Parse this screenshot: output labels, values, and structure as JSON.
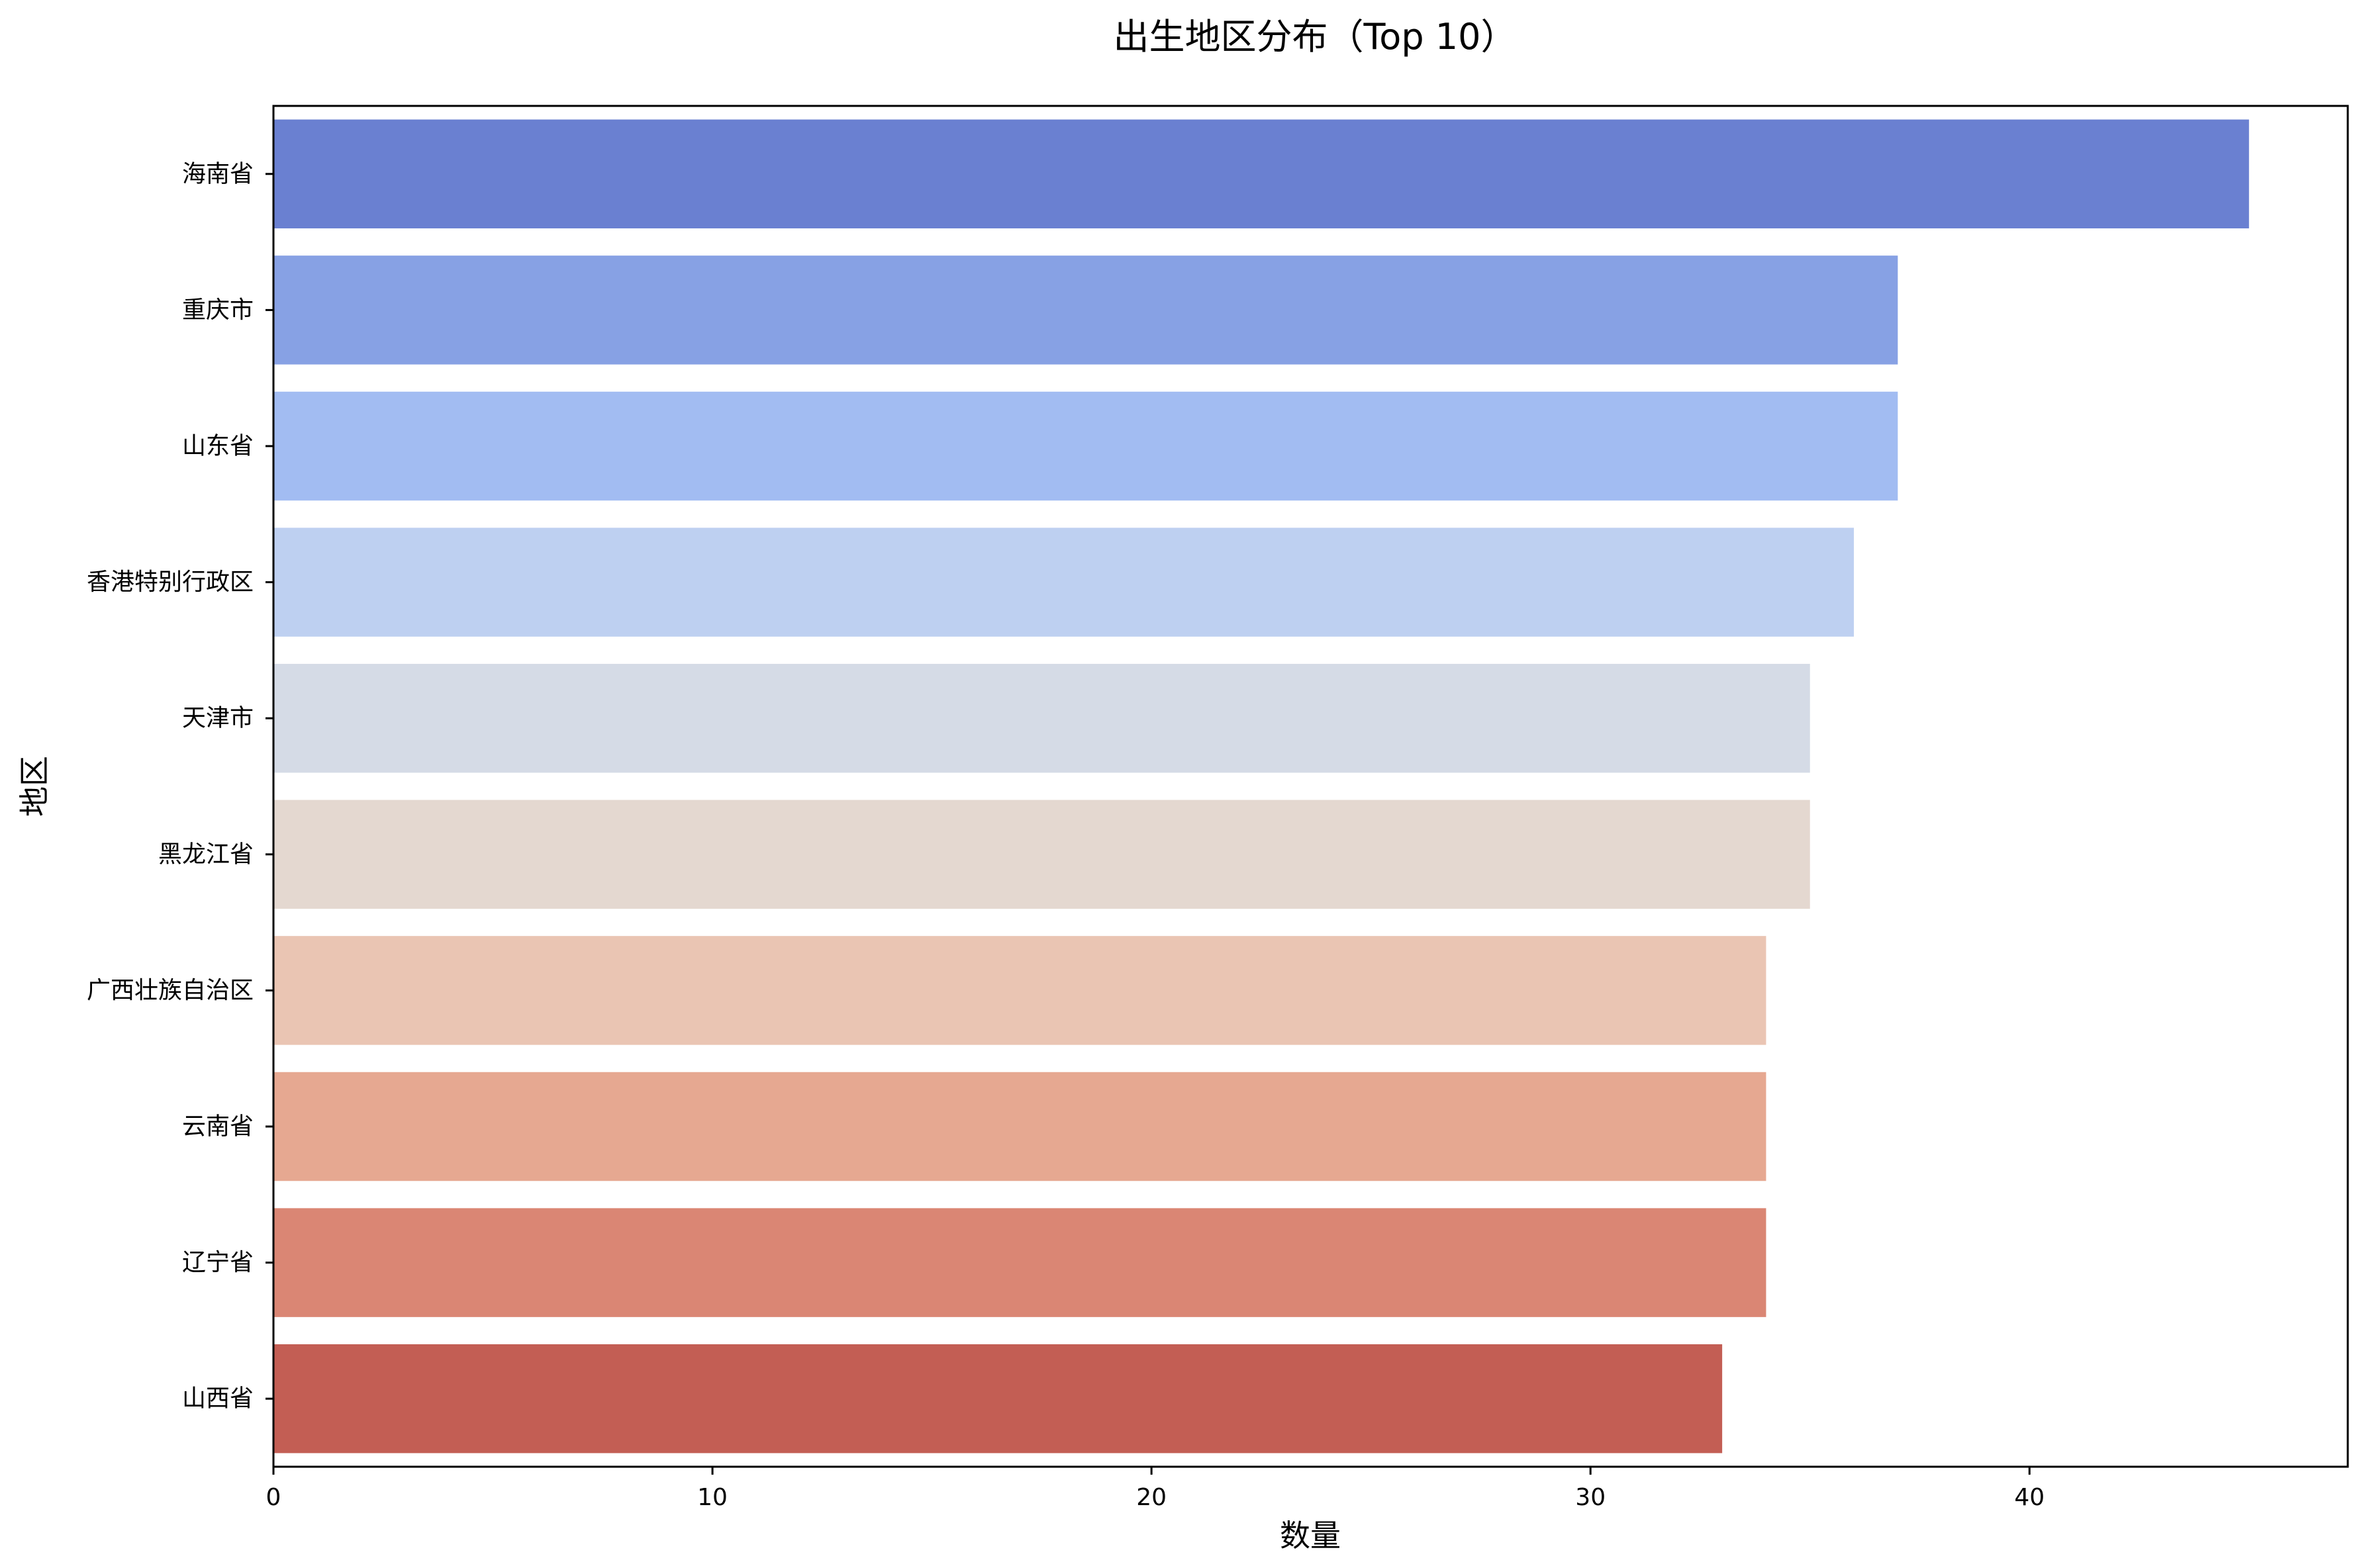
{
  "chart_data": {
    "type": "bar",
    "orientation": "horizontal",
    "title": "出生地区分布（Top 10）",
    "xlabel": "数量",
    "ylabel": "地区",
    "categories": [
      "海南省",
      "重庆市",
      "山东省",
      "香港特别行政区",
      "天津市",
      "黑龙江省",
      "广西壮族自治区",
      "云南省",
      "辽宁省",
      "山西省"
    ],
    "values": [
      45,
      37,
      37,
      36,
      35,
      35,
      34,
      34,
      34,
      33
    ],
    "colors": [
      "#6a80d1",
      "#87a1e4",
      "#a2bcf2",
      "#bed0f1",
      "#d5dbe6",
      "#e4d8d0",
      "#eac5b3",
      "#e6a891",
      "#da8674",
      "#c35e54"
    ],
    "xlim": [
      0,
      47.25
    ],
    "xticks": [
      0,
      10,
      20,
      30,
      40
    ],
    "grid": false,
    "legend": false
  }
}
